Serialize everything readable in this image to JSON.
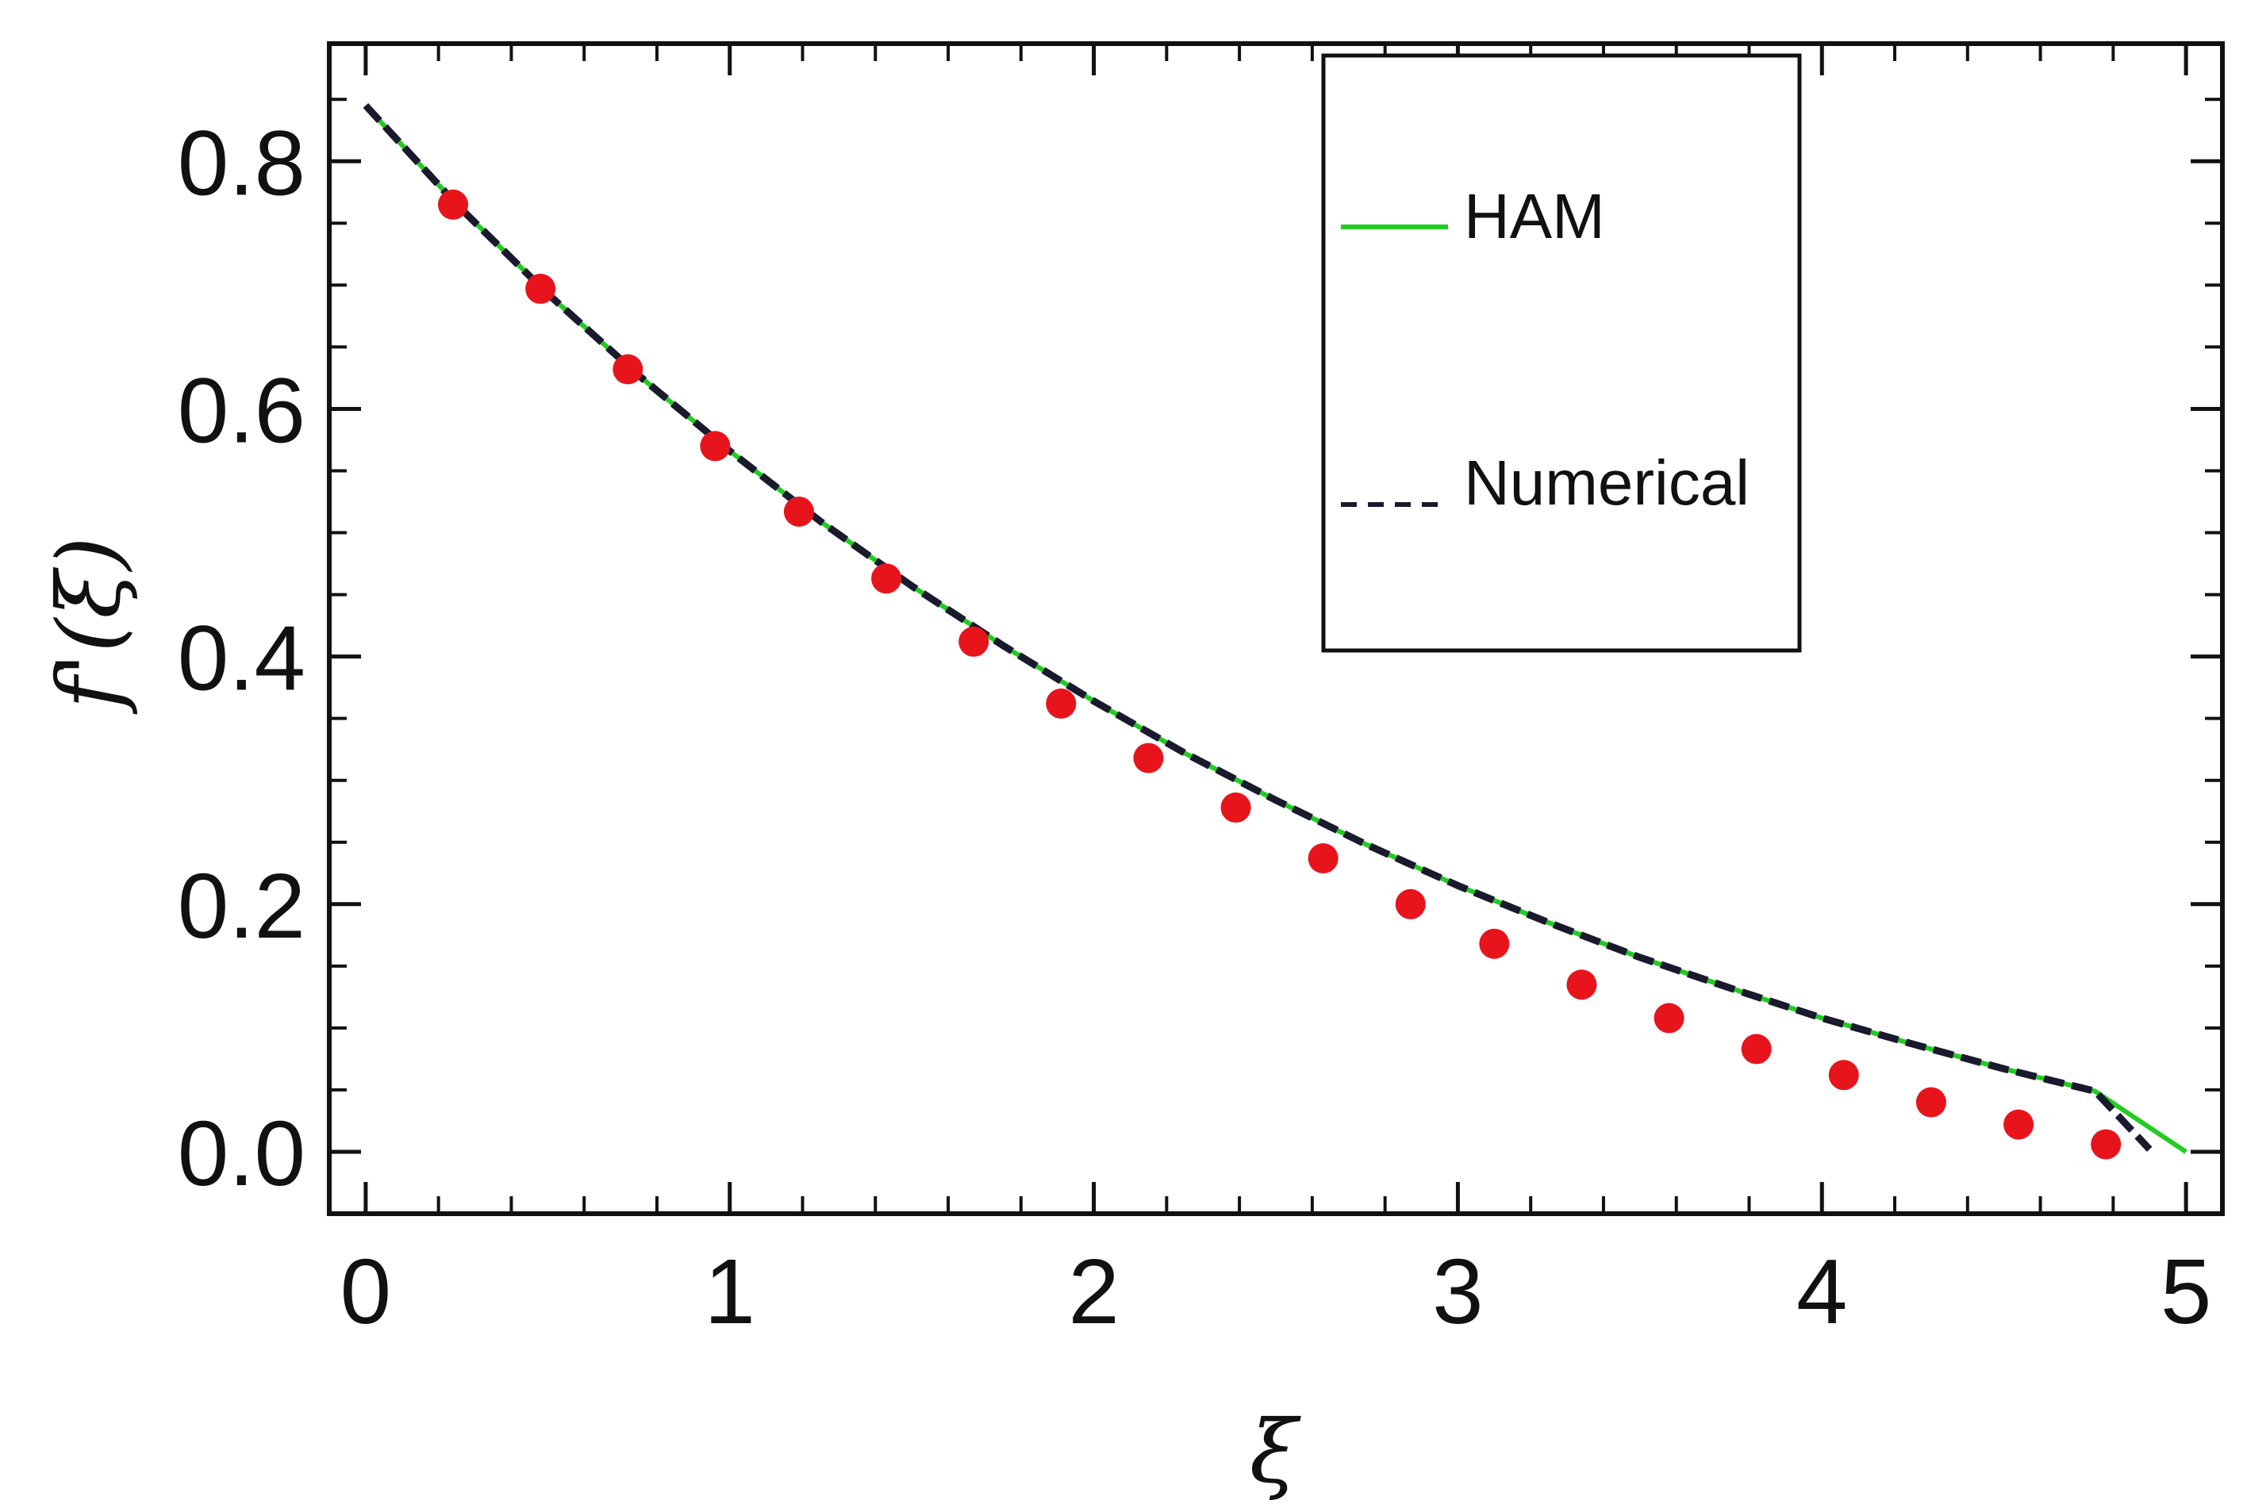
{
  "chart_data": {
    "type": "line",
    "title": "",
    "xlabel": "ξ",
    "ylabel": "f'(ξ)",
    "xlim": [
      -0.1,
      5.1
    ],
    "ylim": [
      -0.05,
      0.895
    ],
    "xticks": [
      0,
      1,
      2,
      3,
      4,
      5
    ],
    "xtick_labels": [
      "0",
      "1",
      "2",
      "3",
      "4",
      "5"
    ],
    "yticks": [
      0.0,
      0.2,
      0.4,
      0.6,
      0.8
    ],
    "ytick_labels": [
      "0.0",
      "0.2",
      "0.4",
      "0.6",
      "0.8"
    ],
    "grid": false,
    "legend_position": "top-right",
    "series": [
      {
        "name": "HAM",
        "style": "solid",
        "color": "#22cc22",
        "x": [
          0,
          0.25,
          0.5,
          0.75,
          1.0,
          1.25,
          1.5,
          1.75,
          2.0,
          2.25,
          2.5,
          2.75,
          3.0,
          3.25,
          3.5,
          3.75,
          4.0,
          4.25,
          4.5,
          4.75,
          5.0
        ],
        "y": [
          0.845,
          0.765,
          0.693,
          0.627,
          0.566,
          0.509,
          0.457,
          0.409,
          0.364,
          0.322,
          0.284,
          0.248,
          0.215,
          0.185,
          0.157,
          0.132,
          0.108,
          0.087,
          0.067,
          0.049,
          0.0
        ]
      },
      {
        "name": "Numerical",
        "style": "dashed",
        "color": "#1a1a2e",
        "x": [
          0,
          0.25,
          0.5,
          0.75,
          1.0,
          1.25,
          1.5,
          1.75,
          2.0,
          2.25,
          2.5,
          2.75,
          3.0,
          3.25,
          3.5,
          3.75,
          4.0,
          4.25,
          4.5,
          4.75,
          4.9
        ],
        "y": [
          0.845,
          0.765,
          0.693,
          0.627,
          0.566,
          0.509,
          0.457,
          0.409,
          0.364,
          0.322,
          0.284,
          0.248,
          0.215,
          0.185,
          0.157,
          0.132,
          0.108,
          0.087,
          0.067,
          0.049,
          0.002
        ]
      }
    ],
    "markers": {
      "color": "#e8141c",
      "x": [
        0.24,
        0.48,
        0.72,
        0.96,
        1.19,
        1.43,
        1.67,
        1.91,
        2.15,
        2.39,
        2.63,
        2.87,
        3.1,
        3.34,
        3.58,
        3.82,
        4.06,
        4.3,
        4.54,
        4.78
      ],
      "y": [
        0.765,
        0.697,
        0.632,
        0.57,
        0.517,
        0.463,
        0.412,
        0.362,
        0.318,
        0.278,
        0.237,
        0.2,
        0.168,
        0.135,
        0.108,
        0.083,
        0.062,
        0.04,
        0.022,
        0.006
      ]
    }
  }
}
